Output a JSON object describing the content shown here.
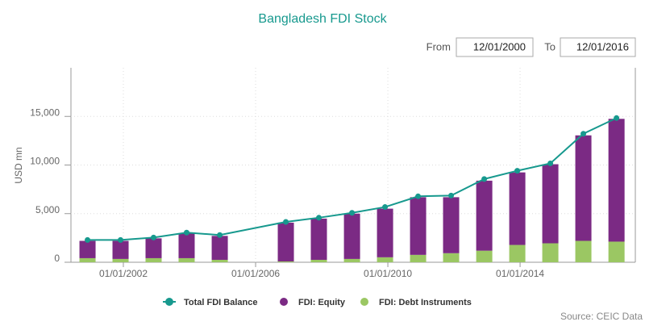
{
  "chart_data": {
    "type": "bar",
    "title": "Bangladesh FDI Stock",
    "from_label": "From",
    "from_date": "12/01/2000",
    "to_label": "To",
    "to_date": "12/01/2016",
    "y_label": "USD mn",
    "source": "Source: CEIC Data",
    "stacked": true,
    "x": [
      "2000-12-01",
      "2001-12-01",
      "2002-12-01",
      "2003-12-01",
      "2004-12-01",
      "2006-12-01",
      "2007-12-01",
      "2008-12-01",
      "2009-12-01",
      "2010-12-01",
      "2011-12-01",
      "2012-12-01",
      "2013-12-01",
      "2014-12-01",
      "2015-12-01",
      "2016-12-01"
    ],
    "series": [
      {
        "name": "Total FDI Balance",
        "type": "line",
        "color": "#17998e",
        "values": [
          2290,
          2290,
          2540,
          3050,
          2800,
          4150,
          4580,
          5080,
          5680,
          6780,
          6860,
          8560,
          9410,
          10170,
          13220,
          14830
        ]
      },
      {
        "name": "FDI: Equity",
        "type": "bar",
        "color": "#7b2a84",
        "values": [
          1780,
          1860,
          2040,
          2550,
          2460,
          3990,
          4240,
          4660,
          5000,
          5930,
          5760,
          7200,
          7460,
          8130,
          10850,
          12630
        ]
      },
      {
        "name": "FDI: Debt Instruments",
        "type": "bar",
        "color": "#9bc763",
        "values": [
          420,
          340,
          420,
          420,
          250,
          85,
          250,
          340,
          510,
          760,
          930,
          1190,
          1780,
          1950,
          2200,
          2120
        ]
      }
    ],
    "xlim": [
      "2000-06-01",
      "2017-06-27"
    ],
    "xticks": [
      {
        "value": "2002-01-01",
        "label": "01/01/2002"
      },
      {
        "value": "2006-01-01",
        "label": "01/01/2006"
      },
      {
        "value": "2010-01-01",
        "label": "01/01/2010"
      },
      {
        "value": "2014-01-01",
        "label": "01/01/2014"
      }
    ],
    "ylim": [
      0,
      20000
    ],
    "yticks": [
      0,
      {
        "value": 5000,
        "label": "5,000"
      },
      {
        "value": 10000,
        "label": "10,000"
      },
      {
        "value": 15000,
        "label": "15,000"
      }
    ],
    "grid": true,
    "legend": "bottom"
  }
}
